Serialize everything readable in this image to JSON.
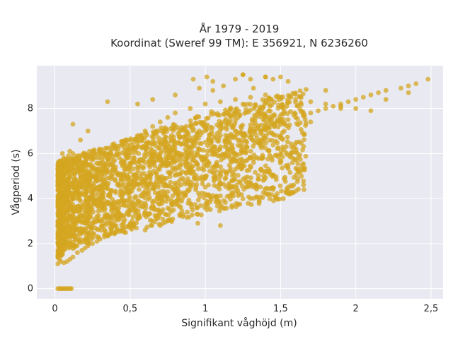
{
  "chart_data": {
    "type": "scatter",
    "title": "År 1979 - 2019",
    "subtitle": "Koordinat (Sweref 99 TM): E 356921, N 6236260",
    "xlabel": "Signifikant våghöjd (m)",
    "ylabel": "Vågperiod (s)",
    "xlim": [
      -0.12,
      2.58
    ],
    "ylim": [
      -0.45,
      9.9
    ],
    "xticks": [
      0,
      0.5,
      1,
      1.5,
      2,
      2.5
    ],
    "xtick_labels": [
      "0",
      "0,5",
      "1",
      "1,5",
      "2",
      "2,5"
    ],
    "yticks": [
      0,
      2,
      4,
      6,
      8
    ],
    "ytick_labels": [
      "0",
      "2",
      "4",
      "6",
      "8"
    ],
    "grid": true,
    "plot_background": "#e9e9f1",
    "point_color": "#d4a520",
    "series": [
      {
        "x": [
          0.02,
          0.03,
          0.04,
          0.05,
          0.06,
          0.07,
          0.08,
          0.09,
          0.1,
          0.11,
          0.12,
          0.13,
          0.03,
          0.04,
          0.05,
          0.06,
          0.07,
          0.08,
          0.02,
          0.04,
          0.06,
          0.08,
          0.1,
          0.12,
          0.15,
          0.18,
          0.2,
          0.22,
          0.25,
          0.28,
          0.3,
          0.33,
          0.36,
          0.4,
          0.45,
          0.5,
          0.55,
          0.6,
          0.65,
          0.7,
          0.75,
          0.8,
          0.85,
          0.9,
          0.95,
          1.0,
          1.05,
          1.1,
          1.15,
          1.2,
          1.25,
          1.3,
          1.35,
          1.4,
          1.45,
          1.5,
          1.55,
          1.6,
          1.65,
          1.7,
          1.75,
          1.8,
          1.85,
          1.9,
          1.95,
          2.0,
          2.05,
          2.1,
          2.15,
          2.2,
          2.3,
          2.35,
          2.4,
          2.48,
          0.04,
          0.05,
          0.06,
          0.07,
          0.08,
          0.09,
          0.1,
          0.12,
          0.14,
          0.16,
          0.18,
          0.2,
          0.24,
          0.28,
          0.32,
          0.36,
          0.4,
          0.45,
          0.5,
          0.55,
          0.6,
          0.65,
          0.7,
          0.75,
          0.8,
          0.9,
          1.0,
          1.1,
          1.2,
          1.3,
          1.4,
          1.5,
          1.6,
          1.7,
          1.8,
          1.9,
          2.0,
          2.1,
          0.05,
          0.08,
          0.12,
          0.16,
          0.2,
          0.25,
          0.3,
          0.35,
          0.4,
          0.45,
          0.5,
          0.55,
          0.6,
          0.7,
          0.8,
          0.9,
          1.0,
          1.1,
          1.2,
          1.3,
          1.4,
          1.5,
          0.1,
          0.15,
          0.2,
          0.25,
          0.3,
          0.4,
          0.5,
          0.6,
          0.7,
          0.8,
          0.9,
          1.0,
          1.1,
          1.2,
          0.92,
          0.96,
          1.01,
          1.05,
          1.12,
          1.2,
          1.25,
          1.3,
          1.32,
          1.4,
          1.45,
          1.5,
          1.55,
          0.6,
          0.7,
          0.75,
          0.85,
          0.95,
          1.1,
          1.3,
          1.45
        ],
        "y": [
          1.1,
          1.3,
          1.5,
          1.7,
          1.9,
          2.2,
          2.5,
          2.8,
          3.2,
          3.6,
          4.0,
          4.5,
          5.0,
          5.5,
          6.0,
          5.8,
          5.2,
          4.8,
          1.4,
          1.2,
          1.15,
          1.2,
          1.3,
          1.4,
          1.6,
          1.7,
          1.8,
          1.9,
          2.0,
          2.1,
          2.2,
          2.3,
          2.4,
          2.5,
          2.7,
          2.9,
          3.1,
          3.4,
          3.7,
          4.0,
          4.3,
          4.6,
          4.9,
          5.2,
          5.5,
          5.8,
          6.1,
          6.3,
          6.5,
          6.7,
          6.8,
          7.0,
          7.1,
          7.2,
          7.3,
          7.4,
          7.5,
          7.6,
          7.7,
          7.8,
          7.9,
          8.0,
          8.1,
          8.2,
          8.3,
          8.4,
          8.5,
          8.6,
          8.7,
          8.8,
          8.9,
          9.0,
          9.1,
          9.3,
          3.5,
          4.2,
          4.8,
          5.3,
          5.6,
          5.9,
          6.1,
          6.0,
          5.7,
          5.4,
          5.2,
          5.0,
          5.1,
          5.3,
          5.6,
          5.9,
          6.2,
          6.4,
          6.6,
          6.8,
          7.0,
          7.2,
          7.4,
          7.6,
          7.8,
          8.0,
          8.2,
          8.3,
          8.4,
          8.5,
          8.6,
          8.5,
          8.4,
          8.3,
          8.2,
          8.1,
          8.0,
          7.9,
          2.0,
          2.5,
          3.0,
          3.4,
          3.8,
          4.1,
          4.4,
          4.6,
          4.8,
          5.0,
          5.2,
          5.4,
          5.6,
          5.8,
          6.0,
          6.3,
          6.5,
          6.8,
          7.0,
          7.1,
          7.3,
          7.5,
          2.0,
          2.3,
          2.5,
          2.8,
          3.0,
          3.2,
          3.5,
          3.8,
          4.1,
          4.3,
          4.6,
          4.9,
          5.1,
          5.3,
          9.3,
          8.9,
          9.4,
          9.2,
          9.0,
          9.3,
          9.5,
          9.3,
          8.9,
          9.4,
          9.3,
          9.4,
          9.2,
          2.6,
          2.8,
          3.0,
          3.2,
          3.3,
          3.6,
          4.0,
          4.4
        ],
        "zero_x": [
          0.02,
          0.03,
          0.04,
          0.05,
          0.06,
          0.07,
          0.08,
          0.09,
          0.1,
          0.11
        ],
        "zero_y": [
          0,
          0,
          0,
          0,
          0,
          0,
          0,
          0,
          0,
          0
        ],
        "outliers_x": [
          0.12,
          0.13,
          0.17,
          0.22,
          0.35,
          0.55,
          0.65,
          0.8,
          1.05,
          1.25,
          1.4,
          1.7,
          1.8,
          1.9,
          2.2,
          2.35,
          1.1,
          0.95
        ],
        "outliers_y": [
          7.3,
          3.5,
          6.6,
          7.0,
          8.3,
          8.2,
          8.4,
          8.6,
          8.8,
          9.5,
          9.4,
          7.4,
          8.8,
          8.0,
          8.4,
          8.7,
          2.8,
          2.9
        ]
      }
    ]
  }
}
